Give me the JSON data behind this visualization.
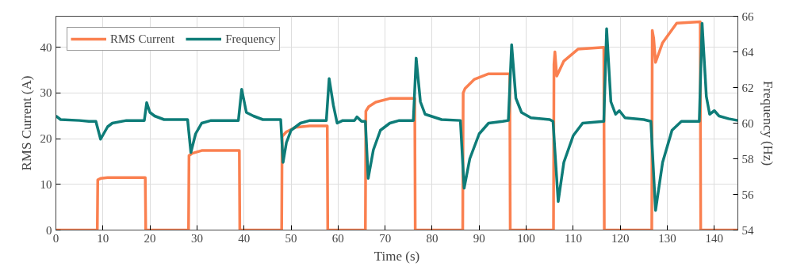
{
  "chart_data": {
    "type": "line",
    "xlabel": "Time (s)",
    "ylabel": "RMS Current (A)",
    "y2label": "Frequency (Hz)",
    "xlim": [
      0,
      145
    ],
    "xticks": [
      0,
      10,
      20,
      30,
      40,
      50,
      60,
      70,
      80,
      90,
      100,
      110,
      120,
      130,
      140
    ],
    "ylim": [
      0,
      46.8
    ],
    "yticks": [
      0,
      10,
      20,
      30,
      40
    ],
    "y2lim": [
      54,
      66
    ],
    "y2ticks": [
      54,
      56,
      58,
      60,
      62,
      64,
      66
    ],
    "grid": true,
    "legend": "top left",
    "line_style": "solid",
    "series": [
      {
        "name": "RMS Current",
        "color": "#fa8050",
        "x": [
          0,
          8.8,
          8.9,
          9.5,
          11,
          19,
          19.1,
          28.2,
          28.3,
          29,
          31,
          39,
          39.1,
          48,
          48.1,
          49,
          51,
          54,
          57.7,
          57.8,
          65.8,
          65.9,
          66.5,
          68,
          71,
          76.3,
          76.4,
          86.5,
          86.6,
          87,
          89,
          92,
          96.5,
          96.6,
          105.8,
          105.9,
          106.1,
          106.5,
          108,
          111,
          116.5,
          116.6,
          126.7,
          126.8,
          127.1,
          127.5,
          129,
          132,
          137,
          137.1,
          145
        ],
        "values": [
          0,
          0,
          11,
          11.3,
          11.5,
          11.5,
          0,
          0,
          16.3,
          16.8,
          17.4,
          17.4,
          0,
          0,
          20.5,
          21.5,
          22.5,
          22.8,
          22.8,
          0,
          0,
          26,
          27,
          28,
          28.8,
          28.8,
          0,
          0,
          30,
          31,
          33,
          34.2,
          34.2,
          0,
          0,
          36.3,
          39,
          33.7,
          37,
          39.6,
          40,
          0,
          0,
          43.7,
          42,
          36.7,
          41,
          45.3,
          45.6,
          0,
          0
        ]
      },
      {
        "name": "Frequency",
        "color": "#0e7c78",
        "axis": "y2",
        "x": [
          0,
          1,
          5,
          7,
          8.5,
          9.5,
          11,
          12,
          15,
          18.8,
          19.3,
          20,
          21,
          23,
          28,
          28.7,
          29.7,
          31,
          33,
          38.8,
          39.5,
          40.5,
          42,
          44,
          47.8,
          48.3,
          49,
          50,
          52,
          54,
          57.5,
          58.1,
          59,
          59.8,
          61,
          63.5,
          64,
          65,
          65.8,
          66.4,
          67.5,
          69,
          71,
          73,
          76,
          76.6,
          77.5,
          78.5,
          82,
          86,
          86.8,
          88,
          90,
          92,
          95,
          96.2,
          96.9,
          97.8,
          99,
          101,
          105,
          105.7,
          106.8,
          108,
          110,
          112,
          116.5,
          117.1,
          118,
          119,
          119.8,
          121,
          125,
          126.5,
          127.5,
          129,
          131,
          133,
          136.8,
          137.4,
          138.3,
          139,
          140,
          141,
          143,
          145
        ],
        "values": [
          60.4,
          60.2,
          60.15,
          60.1,
          60.1,
          59.1,
          59.8,
          60.0,
          60.15,
          60.15,
          61.15,
          60.6,
          60.4,
          60.2,
          60.2,
          58.35,
          59.4,
          60.0,
          60.15,
          60.15,
          61.9,
          60.6,
          60.4,
          60.2,
          60.2,
          57.8,
          58.9,
          59.6,
          60.0,
          60.15,
          60.15,
          62.5,
          61,
          60.0,
          60.15,
          60.15,
          60.35,
          60.1,
          60.1,
          56.9,
          58.5,
          59.6,
          60.0,
          60.15,
          60.15,
          63.65,
          61.2,
          60.5,
          60.2,
          60.15,
          56.35,
          58.0,
          59.4,
          60.0,
          60.1,
          60.15,
          64.4,
          61.4,
          60.6,
          60.3,
          60.2,
          60.1,
          55.6,
          57.8,
          59.3,
          60.0,
          60.1,
          65.3,
          61.2,
          60.5,
          60.7,
          60.3,
          60.2,
          60.1,
          55.1,
          57.8,
          59.6,
          60.1,
          60.1,
          65.6,
          61.5,
          60.5,
          60.7,
          60.4,
          60.25,
          60.15
        ]
      }
    ]
  }
}
